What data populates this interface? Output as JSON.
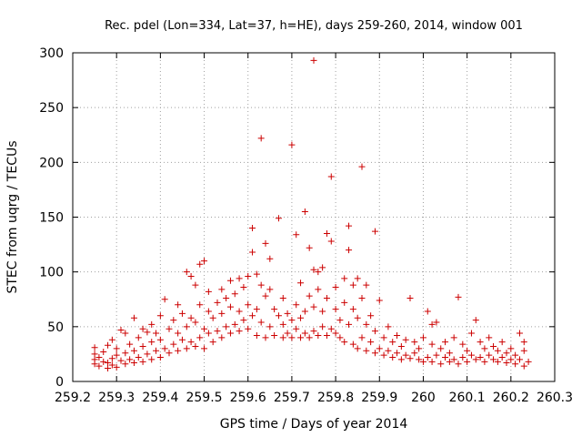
{
  "chart_data": {
    "type": "scatter",
    "title": "Rec. pdel (Lon=334, Lat=37, h=HE), days 259-260, 2014, window 001",
    "xlabel": "GPS time / Days of year 2014",
    "ylabel": "STEC from uqrg / TECUs",
    "xlim": [
      259.2,
      260.3
    ],
    "ylim": [
      0,
      300
    ],
    "xticks": [
      "259.2",
      "259.3",
      "259.4",
      "259.5",
      "259.6",
      "259.7",
      "259.8",
      "259.9",
      "260",
      "260.1",
      "260.2",
      "260.3"
    ],
    "yticks": [
      "0",
      "50",
      "100",
      "150",
      "200",
      "250",
      "300"
    ],
    "grid": true,
    "marker": "+",
    "color": "#cc0000",
    "points": [
      [
        259.25,
        16
      ],
      [
        259.25,
        20
      ],
      [
        259.25,
        25
      ],
      [
        259.25,
        31
      ],
      [
        259.26,
        14
      ],
      [
        259.26,
        22
      ],
      [
        259.27,
        18
      ],
      [
        259.27,
        27
      ],
      [
        259.28,
        12
      ],
      [
        259.28,
        17
      ],
      [
        259.28,
        33
      ],
      [
        259.29,
        15
      ],
      [
        259.29,
        21
      ],
      [
        259.29,
        38
      ],
      [
        259.3,
        13
      ],
      [
        259.3,
        24
      ],
      [
        259.3,
        30
      ],
      [
        259.31,
        19
      ],
      [
        259.31,
        47
      ],
      [
        259.32,
        16
      ],
      [
        259.32,
        26
      ],
      [
        259.32,
        44
      ],
      [
        259.33,
        20
      ],
      [
        259.33,
        34
      ],
      [
        259.34,
        17
      ],
      [
        259.34,
        28
      ],
      [
        259.34,
        58
      ],
      [
        259.35,
        22
      ],
      [
        259.35,
        40
      ],
      [
        259.36,
        18
      ],
      [
        259.36,
        32
      ],
      [
        259.36,
        48
      ],
      [
        259.37,
        25
      ],
      [
        259.37,
        45
      ],
      [
        259.38,
        20
      ],
      [
        259.38,
        36
      ],
      [
        259.38,
        52
      ],
      [
        259.39,
        28
      ],
      [
        259.39,
        44
      ],
      [
        259.4,
        22
      ],
      [
        259.4,
        38
      ],
      [
        259.4,
        60
      ],
      [
        259.41,
        30
      ],
      [
        259.41,
        75
      ],
      [
        259.42,
        26
      ],
      [
        259.42,
        48
      ],
      [
        259.43,
        34
      ],
      [
        259.43,
        56
      ],
      [
        259.44,
        28
      ],
      [
        259.44,
        44
      ],
      [
        259.44,
        70
      ],
      [
        259.45,
        38
      ],
      [
        259.45,
        62
      ],
      [
        259.46,
        30
      ],
      [
        259.46,
        50
      ],
      [
        259.46,
        100
      ],
      [
        259.47,
        36
      ],
      [
        259.47,
        58
      ],
      [
        259.47,
        96
      ],
      [
        259.48,
        32
      ],
      [
        259.48,
        54
      ],
      [
        259.48,
        88
      ],
      [
        259.49,
        40
      ],
      [
        259.49,
        70
      ],
      [
        259.49,
        107
      ],
      [
        259.5,
        30
      ],
      [
        259.5,
        48
      ],
      [
        259.5,
        110
      ],
      [
        259.51,
        44
      ],
      [
        259.51,
        64
      ],
      [
        259.51,
        82
      ],
      [
        259.52,
        36
      ],
      [
        259.52,
        58
      ],
      [
        259.53,
        46
      ],
      [
        259.53,
        72
      ],
      [
        259.54,
        40
      ],
      [
        259.54,
        62
      ],
      [
        259.54,
        84
      ],
      [
        259.55,
        50
      ],
      [
        259.55,
        76
      ],
      [
        259.56,
        44
      ],
      [
        259.56,
        68
      ],
      [
        259.56,
        92
      ],
      [
        259.57,
        52
      ],
      [
        259.57,
        80
      ],
      [
        259.58,
        46
      ],
      [
        259.58,
        64
      ],
      [
        259.58,
        94
      ],
      [
        259.59,
        56
      ],
      [
        259.59,
        86
      ],
      [
        259.6,
        48
      ],
      [
        259.6,
        70
      ],
      [
        259.6,
        96
      ],
      [
        259.61,
        60
      ],
      [
        259.61,
        140
      ],
      [
        259.61,
        118
      ],
      [
        259.62,
        42
      ],
      [
        259.62,
        66
      ],
      [
        259.62,
        98
      ],
      [
        259.63,
        222
      ],
      [
        259.63,
        54
      ],
      [
        259.63,
        88
      ],
      [
        259.64,
        40
      ],
      [
        259.64,
        78
      ],
      [
        259.64,
        126
      ],
      [
        259.65,
        50
      ],
      [
        259.65,
        84
      ],
      [
        259.65,
        112
      ],
      [
        259.66,
        42
      ],
      [
        259.66,
        66
      ],
      [
        259.67,
        60
      ],
      [
        259.67,
        149
      ],
      [
        259.68,
        40
      ],
      [
        259.68,
        52
      ],
      [
        259.68,
        76
      ],
      [
        259.69,
        44
      ],
      [
        259.69,
        62
      ],
      [
        259.7,
        40
      ],
      [
        259.7,
        216
      ],
      [
        259.7,
        56
      ],
      [
        259.71,
        48
      ],
      [
        259.71,
        134
      ],
      [
        259.71,
        70
      ],
      [
        259.72,
        40
      ],
      [
        259.72,
        90
      ],
      [
        259.72,
        58
      ],
      [
        259.73,
        44
      ],
      [
        259.73,
        155
      ],
      [
        259.73,
        64
      ],
      [
        259.74,
        40
      ],
      [
        259.74,
        78
      ],
      [
        259.74,
        122
      ],
      [
        259.75,
        46
      ],
      [
        259.75,
        102
      ],
      [
        259.75,
        68
      ],
      [
        259.75,
        293
      ],
      [
        259.76,
        42
      ],
      [
        259.76,
        84
      ],
      [
        259.76,
        100
      ],
      [
        259.77,
        50
      ],
      [
        259.77,
        64
      ],
      [
        259.77,
        104
      ],
      [
        259.78,
        42
      ],
      [
        259.78,
        76
      ],
      [
        259.78,
        135
      ],
      [
        259.79,
        48
      ],
      [
        259.79,
        128
      ],
      [
        259.79,
        187
      ],
      [
        259.8,
        44
      ],
      [
        259.8,
        66
      ],
      [
        259.8,
        86
      ],
      [
        259.81,
        40
      ],
      [
        259.81,
        56
      ],
      [
        259.82,
        36
      ],
      [
        259.82,
        94
      ],
      [
        259.82,
        72
      ],
      [
        259.83,
        142
      ],
      [
        259.83,
        120
      ],
      [
        259.83,
        52
      ],
      [
        259.84,
        34
      ],
      [
        259.84,
        66
      ],
      [
        259.84,
        88
      ],
      [
        259.85,
        30
      ],
      [
        259.85,
        58
      ],
      [
        259.85,
        94
      ],
      [
        259.86,
        196
      ],
      [
        259.86,
        40
      ],
      [
        259.86,
        76
      ],
      [
        259.87,
        28
      ],
      [
        259.87,
        52
      ],
      [
        259.87,
        88
      ],
      [
        259.88,
        36
      ],
      [
        259.88,
        60
      ],
      [
        259.89,
        26
      ],
      [
        259.89,
        137
      ],
      [
        259.89,
        46
      ],
      [
        259.9,
        30
      ],
      [
        259.9,
        74
      ],
      [
        259.91,
        24
      ],
      [
        259.91,
        40
      ],
      [
        259.92,
        28
      ],
      [
        259.92,
        50
      ],
      [
        259.93,
        22
      ],
      [
        259.93,
        36
      ],
      [
        259.94,
        26
      ],
      [
        259.94,
        42
      ],
      [
        259.95,
        20
      ],
      [
        259.95,
        32
      ],
      [
        259.96,
        24
      ],
      [
        259.96,
        38
      ],
      [
        259.97,
        21
      ],
      [
        259.97,
        76
      ],
      [
        259.98,
        26
      ],
      [
        259.98,
        36
      ],
      [
        259.99,
        20
      ],
      [
        259.99,
        30
      ],
      [
        260.0,
        18
      ],
      [
        260.0,
        40
      ],
      [
        260.01,
        22
      ],
      [
        260.01,
        64
      ],
      [
        260.02,
        18
      ],
      [
        260.02,
        34
      ],
      [
        260.02,
        52
      ],
      [
        260.03,
        24
      ],
      [
        260.03,
        54
      ],
      [
        260.04,
        16
      ],
      [
        260.04,
        30
      ],
      [
        260.05,
        22
      ],
      [
        260.05,
        36
      ],
      [
        260.06,
        18
      ],
      [
        260.06,
        26
      ],
      [
        260.07,
        20
      ],
      [
        260.07,
        40
      ],
      [
        260.08,
        16
      ],
      [
        260.08,
        77
      ],
      [
        260.09,
        22
      ],
      [
        260.09,
        34
      ],
      [
        260.1,
        18
      ],
      [
        260.1,
        28
      ],
      [
        260.11,
        24
      ],
      [
        260.11,
        44
      ],
      [
        260.12,
        20
      ],
      [
        260.12,
        56
      ],
      [
        260.13,
        22
      ],
      [
        260.13,
        36
      ],
      [
        260.14,
        18
      ],
      [
        260.14,
        30
      ],
      [
        260.15,
        24
      ],
      [
        260.15,
        40
      ],
      [
        260.16,
        20
      ],
      [
        260.16,
        32
      ],
      [
        260.17,
        18
      ],
      [
        260.17,
        28
      ],
      [
        260.18,
        22
      ],
      [
        260.18,
        36
      ],
      [
        260.19,
        17
      ],
      [
        260.19,
        26
      ],
      [
        260.2,
        20
      ],
      [
        260.2,
        30
      ],
      [
        260.21,
        16
      ],
      [
        260.21,
        24
      ],
      [
        260.22,
        44
      ],
      [
        260.22,
        20
      ],
      [
        260.23,
        14
      ],
      [
        260.23,
        28
      ],
      [
        260.23,
        36
      ],
      [
        260.24,
        18
      ]
    ]
  }
}
